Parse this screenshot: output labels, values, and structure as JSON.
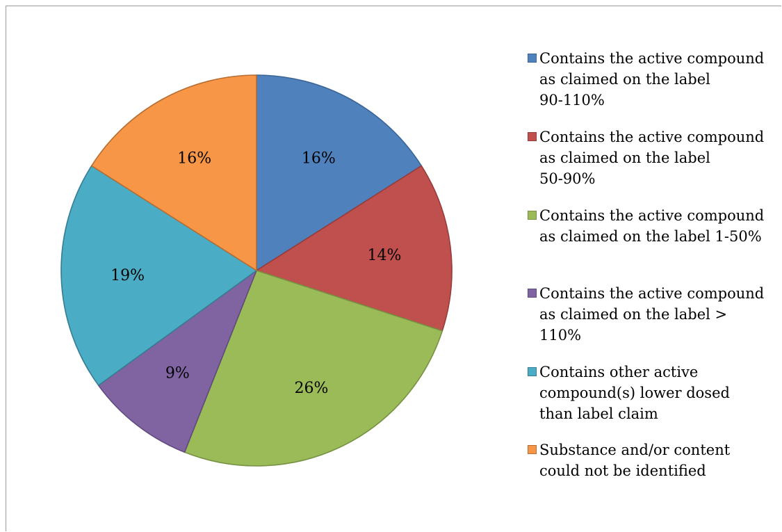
{
  "chart_data": {
    "type": "pie",
    "title": "",
    "slices": [
      {
        "label": "Contains the active compound as claimed on the label 90-110%",
        "legend_text": "Contains the active compound\nas claimed on the label\n90-110%",
        "value": 16,
        "pct_label": "16%",
        "color": "#4F81BD",
        "stroke": "#3B6596"
      },
      {
        "label": "Contains the active compound as claimed on the label 50-90%",
        "legend_text": "Contains the active compound\nas claimed on the label\n50-90%",
        "value": 14,
        "pct_label": "14%",
        "color": "#C0504D",
        "stroke": "#963C3A"
      },
      {
        "label": "Contains the active compound as claimed on the label 1-50%",
        "legend_text": "Contains the active compound\nas claimed on the label 1-50%",
        "value": 26,
        "pct_label": "26%",
        "color": "#9BBB59",
        "stroke": "#779143"
      },
      {
        "label": "Contains the active compound as claimed on the label > 110%",
        "legend_text": "Contains the active compound\nas claimed on the label >\n110%",
        "value": 9,
        "pct_label": "9%",
        "color": "#8064A2",
        "stroke": "#604A7B"
      },
      {
        "label": "Contains other active compound(s) lower dosed than label claim",
        "legend_text": "Contains other active\ncompound(s) lower dosed\nthan label claim",
        "value": 19,
        "pct_label": "19%",
        "color": "#4BACC6",
        "stroke": "#357D91"
      },
      {
        "label": "Substance and/or content could not be identified",
        "legend_text": "Substance and/or content\ncould not be identified",
        "value": 16,
        "pct_label": "16%",
        "color": "#F79646",
        "stroke": "#B66D31"
      }
    ],
    "legend_position": "right"
  }
}
